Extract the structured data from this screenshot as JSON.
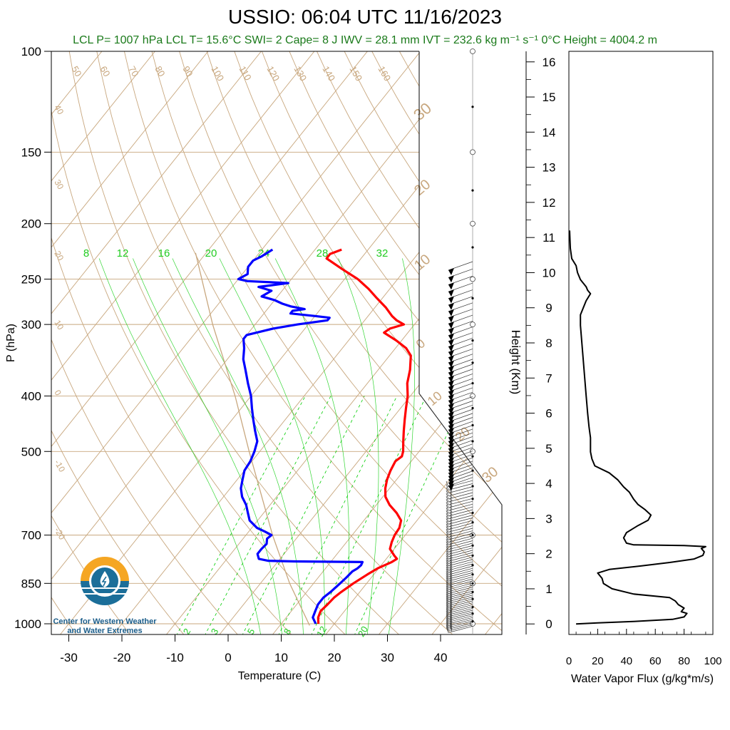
{
  "header": {
    "title": "USSIO: 06:04 UTC 11/16/2023",
    "indices": "LCL P= 1007 hPa  LCL T= 15.6°C  SWI= 2  Cape= 8 J  IWV = 28.1 mm  IVT = 232.6 kg m⁻¹ s⁻¹  0°C Height = 4004.2 m"
  },
  "logo": {
    "line1": "Center for Western Weather",
    "line2": "and Water Extremes"
  },
  "colors": {
    "temperature": "#ff0000",
    "dewpoint": "#0000ff",
    "isotherm": "#c8a77e",
    "mixing_ratio": "#00cc00",
    "moist_adiabat": "#00cc00",
    "parcel": "#c8a77e",
    "flux": "#000000"
  },
  "chart_data": [
    {
      "type": "line",
      "subtype": "skew-t log-p",
      "xlabel": "Temperature (C)",
      "ylabel": "P (hPa)",
      "xticks": [
        -30,
        -20,
        -10,
        0,
        10,
        20,
        30,
        40
      ],
      "yticks": [
        100,
        150,
        200,
        250,
        300,
        400,
        500,
        700,
        850,
        1000
      ],
      "xlim": [
        -33,
        50
      ],
      "ylim": [
        1050,
        100
      ],
      "log_y": true,
      "isotherm_labels": [
        "50",
        "60",
        "70",
        "80",
        "90",
        "100",
        "110",
        "120",
        "130",
        "140",
        "150",
        "160",
        "40",
        "30",
        "20",
        "10",
        "0",
        "-10",
        "-20",
        "30",
        "20",
        "10",
        "0",
        "10",
        "20",
        "30"
      ],
      "mixing_ratio_labels_top": [
        "8",
        "12",
        "16",
        "20",
        "24",
        "28",
        "32"
      ],
      "mixing_ratio_labels_bottom": [
        "2",
        "3",
        "5",
        "8",
        "12",
        "20"
      ],
      "series": [
        {
          "id": "temperature",
          "points": [
            [
              1000,
              17.0
            ],
            [
              975,
              16.0
            ],
            [
              950,
              15.5
            ],
            [
              925,
              15.8
            ],
            [
              900,
              16.0
            ],
            [
              880,
              16.5
            ],
            [
              850,
              17.5
            ],
            [
              820,
              18.8
            ],
            [
              800,
              19.8
            ],
            [
              780,
              21.5
            ],
            [
              770,
              22.0
            ],
            [
              760,
              21.0
            ],
            [
              740,
              19.2
            ],
            [
              720,
              18.5
            ],
            [
              700,
              18.0
            ],
            [
              680,
              17.8
            ],
            [
              660,
              17.0
            ],
            [
              640,
              15.0
            ],
            [
              620,
              12.5
            ],
            [
              600,
              10.5
            ],
            [
              580,
              9.2
            ],
            [
              560,
              8.2
            ],
            [
              540,
              7.5
            ],
            [
              520,
              7.0
            ],
            [
              510,
              7.5
            ],
            [
              500,
              7.0
            ],
            [
              480,
              5.5
            ],
            [
              460,
              4.0
            ],
            [
              440,
              2.5
            ],
            [
              420,
              1.0
            ],
            [
              400,
              -0.5
            ],
            [
              380,
              -2.5
            ],
            [
              360,
              -4.0
            ],
            [
              340,
              -6.0
            ],
            [
              330,
              -8.0
            ],
            [
              320,
              -11.0
            ],
            [
              310,
              -14.5
            ],
            [
              305,
              -14.0
            ],
            [
              300,
              -12.0
            ],
            [
              295,
              -14.0
            ],
            [
              290,
              -15.5
            ],
            [
              280,
              -18.0
            ],
            [
              270,
              -21.0
            ],
            [
              260,
              -24.0
            ],
            [
              250,
              -27.5
            ],
            [
              240,
              -32.0
            ],
            [
              230,
              -36.5
            ],
            [
              226,
              -36.5
            ],
            [
              222,
              -35.0
            ]
          ]
        },
        {
          "id": "dewpoint",
          "points": [
            [
              1000,
              16.5
            ],
            [
              975,
              15.0
            ],
            [
              950,
              14.5
            ],
            [
              925,
              14.0
            ],
            [
              900,
              14.0
            ],
            [
              880,
              14.5
            ],
            [
              850,
              15.0
            ],
            [
              830,
              15.3
            ],
            [
              810,
              15.5
            ],
            [
              800,
              16.0
            ],
            [
              790,
              16.2
            ],
            [
              780,
              16.0
            ],
            [
              778,
              3.0
            ],
            [
              776,
              -2.0
            ],
            [
              770,
              -4.0
            ],
            [
              755,
              -5.0
            ],
            [
              740,
              -5.0
            ],
            [
              725,
              -4.8
            ],
            [
              710,
              -5.5
            ],
            [
              700,
              -5.2
            ],
            [
              690,
              -7.0
            ],
            [
              680,
              -9.0
            ],
            [
              660,
              -11.5
            ],
            [
              640,
              -13.0
            ],
            [
              620,
              -14.5
            ],
            [
              600,
              -16.5
            ],
            [
              580,
              -18.0
            ],
            [
              560,
              -19.0
            ],
            [
              540,
              -20.0
            ],
            [
              520,
              -20.3
            ],
            [
              500,
              -21.0
            ],
            [
              480,
              -22.0
            ],
            [
              460,
              -24.0
            ],
            [
              440,
              -26.0
            ],
            [
              420,
              -28.0
            ],
            [
              400,
              -30.0
            ],
            [
              380,
              -32.5
            ],
            [
              360,
              -35.0
            ],
            [
              345,
              -37.0
            ],
            [
              330,
              -38.5
            ],
            [
              318,
              -40.0
            ],
            [
              313,
              -40.0
            ],
            [
              310,
              -38.5
            ],
            [
              305,
              -36.0
            ],
            [
              300,
              -32.0
            ],
            [
              295,
              -27.0
            ],
            [
              292,
              -27.0
            ],
            [
              290,
              -30.0
            ],
            [
              287,
              -35.0
            ],
            [
              284,
              -35.0
            ],
            [
              282,
              -33.0
            ],
            [
              279,
              -36.0
            ],
            [
              276,
              -38.0
            ],
            [
              272,
              -40.0
            ],
            [
              268,
              -43.0
            ],
            [
              262,
              -42.0
            ],
            [
              258,
              -45.0
            ],
            [
              254,
              -40.0
            ],
            [
              252,
              -48.0
            ],
            [
              250,
              -50.0
            ],
            [
              245,
              -49.0
            ],
            [
              238,
              -50.0
            ],
            [
              232,
              -50.0
            ],
            [
              228,
              -49.0
            ],
            [
              222,
              -48.0
            ]
          ]
        }
      ]
    },
    {
      "type": "line",
      "xlabel": "Water Vapor Flux (g/kg*m/s)",
      "ylabel": "Height (Km)",
      "xticks": [
        0,
        20,
        40,
        60,
        80,
        100
      ],
      "yticks": [
        0,
        1,
        2,
        3,
        4,
        5,
        6,
        7,
        8,
        9,
        10,
        11,
        12,
        13,
        14,
        15,
        16
      ],
      "xlim": [
        0,
        100
      ],
      "ylim": [
        -0.3,
        16.3
      ],
      "series": [
        {
          "id": "flux",
          "points": [
            [
              5,
              0.0
            ],
            [
              20,
              0.03
            ],
            [
              45,
              0.07
            ],
            [
              72,
              0.13
            ],
            [
              80,
              0.2
            ],
            [
              82,
              0.3
            ],
            [
              78,
              0.35
            ],
            [
              80,
              0.45
            ],
            [
              76,
              0.55
            ],
            [
              74,
              0.65
            ],
            [
              70,
              0.75
            ],
            [
              45,
              0.85
            ],
            [
              30,
              1.0
            ],
            [
              24,
              1.15
            ],
            [
              23,
              1.3
            ],
            [
              20,
              1.45
            ],
            [
              28,
              1.55
            ],
            [
              50,
              1.65
            ],
            [
              70,
              1.75
            ],
            [
              87,
              1.85
            ],
            [
              93,
              1.95
            ],
            [
              94,
              2.05
            ],
            [
              92,
              2.15
            ],
            [
              95,
              2.2
            ],
            [
              80,
              2.23
            ],
            [
              45,
              2.25
            ],
            [
              40,
              2.3
            ],
            [
              38,
              2.45
            ],
            [
              40,
              2.6
            ],
            [
              48,
              2.8
            ],
            [
              55,
              2.95
            ],
            [
              57,
              3.1
            ],
            [
              53,
              3.25
            ],
            [
              48,
              3.4
            ],
            [
              45,
              3.55
            ],
            [
              42,
              3.75
            ],
            [
              38,
              3.9
            ],
            [
              34,
              4.1
            ],
            [
              28,
              4.3
            ],
            [
              18,
              4.5
            ],
            [
              16,
              4.7
            ],
            [
              15,
              4.9
            ],
            [
              15,
              5.3
            ],
            [
              14,
              5.6
            ],
            [
              13,
              6.0
            ],
            [
              12,
              6.5
            ],
            [
              11,
              7.0
            ],
            [
              10,
              7.5
            ],
            [
              9,
              8.0
            ],
            [
              8,
              8.5
            ],
            [
              8,
              8.8
            ],
            [
              10,
              9.0
            ],
            [
              12,
              9.2
            ],
            [
              15,
              9.4
            ],
            [
              13,
              9.5
            ],
            [
              12,
              9.6
            ],
            [
              8,
              9.8
            ],
            [
              6,
              10.0
            ],
            [
              5,
              10.2
            ],
            [
              2,
              10.4
            ],
            [
              1,
              10.7
            ],
            [
              0.5,
              11.2
            ]
          ]
        }
      ]
    }
  ]
}
